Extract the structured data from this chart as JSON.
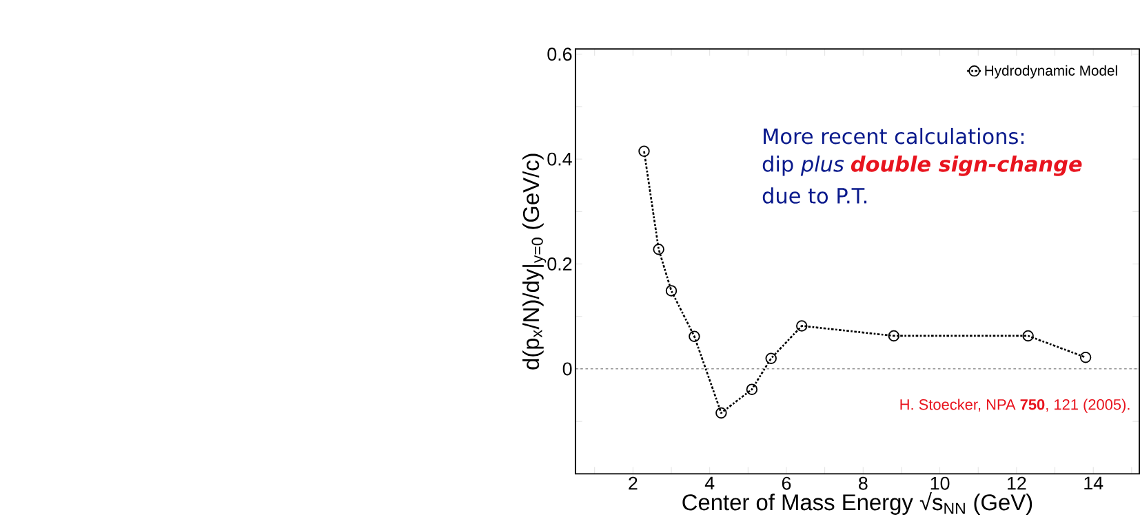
{
  "chart_data": {
    "type": "line",
    "xlabel": "Center of Mass Energy √s$_{NN}$ (GeV)",
    "ylabel": "d(p$_{x}$/N)/dy|$_{y=0}$ (GeV/c)",
    "xlim": [
      0.5,
      15.2
    ],
    "ylim": [
      -0.2,
      0.61
    ],
    "xticks": [
      {
        "value": 1,
        "label": null
      },
      2,
      {
        "value": 3,
        "label": null
      },
      4,
      {
        "value": 5,
        "label": null
      },
      6,
      {
        "value": 7,
        "label": null
      },
      8,
      {
        "value": 9,
        "label": null
      },
      10,
      {
        "value": 11,
        "label": null
      },
      12,
      {
        "value": 13,
        "label": null
      },
      14,
      {
        "value": 15,
        "label": null
      }
    ],
    "yticks": [
      {
        "value": -0.1,
        "label": null
      },
      0,
      {
        "value": 0.1,
        "label": null
      },
      0.2,
      {
        "value": 0.3,
        "label": null
      },
      0.4,
      {
        "value": 0.5,
        "label": null
      },
      0.6
    ],
    "series": [
      {
        "name": "Hydrodynamic Model",
        "color": "#000000",
        "x": [
          2.29,
          2.67,
          3.0,
          3.6,
          4.3,
          5.1,
          5.6,
          6.4,
          8.8,
          12.3,
          13.8
        ],
        "values": [
          0.415,
          0.228,
          0.149,
          0.062,
          -0.084,
          -0.039,
          0.02,
          0.082,
          0.063,
          0.063,
          0.022
        ]
      }
    ],
    "marker": "circle",
    "line_style": "dashed",
    "legend": "top right",
    "grid": false,
    "ref_lines": [
      {
        "axis": "y",
        "value": 0,
        "line_style": "dashed",
        "color": "#000000"
      }
    ],
    "annotations": [
      "More recent calculations:",
      "dip *plus*",
      "double sign-change",
      "due to P.T.",
      "H. Stoecker, NPA **750**, 121 (2005)."
    ]
  }
}
